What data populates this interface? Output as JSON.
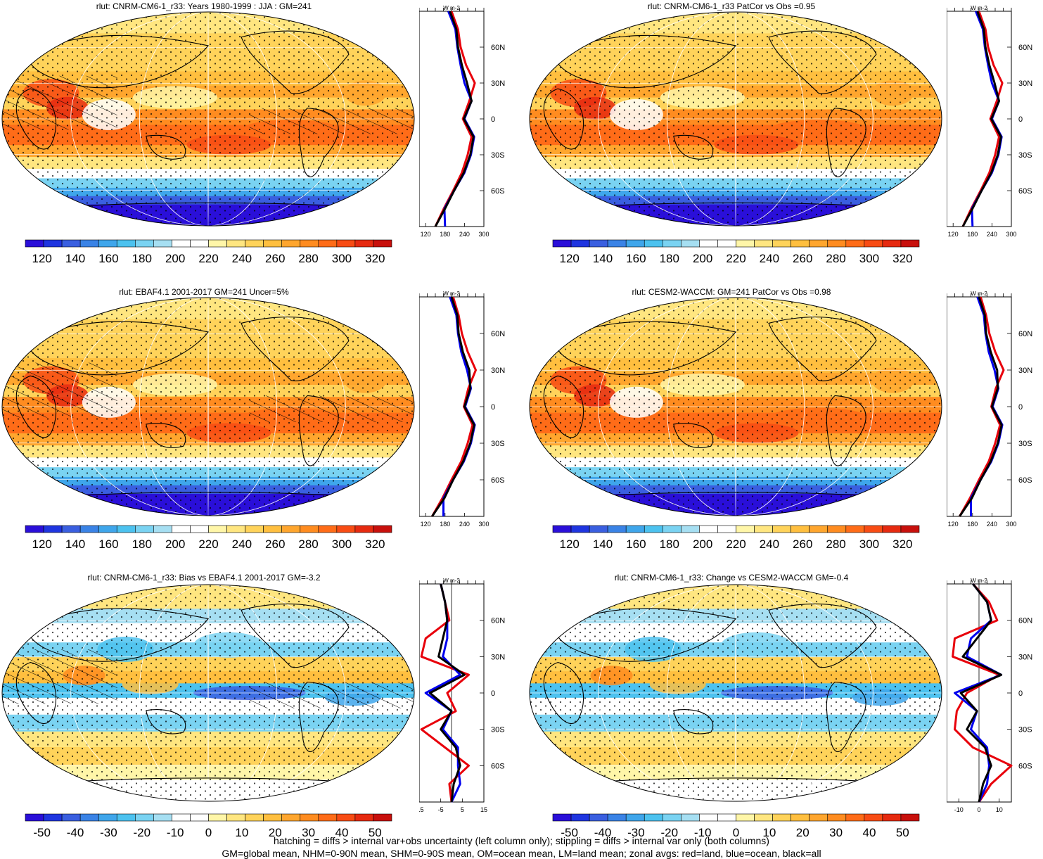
{
  "panels": [
    {
      "title": "rlut: CNRM-CM6-1_r33: Years 1980-1999 : JJA : GM=241",
      "colorbar": "abs",
      "zonal": "abs",
      "hatch": true
    },
    {
      "title": "rlut: CNRM-CM6-1_r33 PatCor vs Obs =0.95",
      "colorbar": "abs",
      "zonal": "abs",
      "hatch": false
    },
    {
      "title": "rlut: EBAF4.1 2001-2017 GM=241 Uncer=5%",
      "colorbar": "abs",
      "zonal": "abs",
      "hatch": true
    },
    {
      "title": "rlut: CESM2-WACCM: GM=241 PatCor vs Obs =0.98",
      "colorbar": "abs",
      "zonal": "abs",
      "hatch": false
    },
    {
      "title": "rlut: CNRM-CM6-1_r33: Bias vs EBAF4.1 2001-2017 GM=-3.2",
      "colorbar": "diff",
      "zonal": "diffL",
      "hatch": true
    },
    {
      "title": "rlut: CNRM-CM6-1_r33: Change vs CESM2-WACCM GM=-0.4",
      "colorbar": "diff",
      "zonal": "diffR",
      "hatch": false
    }
  ],
  "colorbars": {
    "abs": {
      "labels": [
        "120",
        "140",
        "160",
        "180",
        "200",
        "220",
        "240",
        "260",
        "280",
        "300",
        "320"
      ]
    },
    "diff": {
      "labels": [
        "-50",
        "-40",
        "-30",
        "-20",
        "-10",
        "0",
        "10",
        "20",
        "30",
        "40",
        "50"
      ]
    }
  },
  "palette": [
    "#2a0fd9",
    "#1f35e0",
    "#3a5fe0",
    "#3a83e6",
    "#3fa6eb",
    "#4cc2ef",
    "#7ad3f2",
    "#a6dff2",
    "#ffffff",
    "#ffffff",
    "#fff6a8",
    "#ffe680",
    "#ffd35a",
    "#ffbf3f",
    "#ffa62e",
    "#ff8c20",
    "#ff6c18",
    "#f84c14",
    "#e62a10",
    "#c8100c"
  ],
  "zonal_axis": {
    "unit": "W m-2",
    "lat_labels": [
      "60N",
      "30N",
      "0",
      "30S",
      "60S"
    ],
    "abs_ticks": [
      "120",
      "180",
      "240",
      "300"
    ],
    "diffL_ticks": [
      "-15",
      "-5",
      "5",
      "15"
    ],
    "diffR_ticks": [
      "-10",
      "0",
      "10"
    ]
  },
  "footnote": {
    "line1": "hatching = diffs > internal var+obs uncertainty (left column only); stippling = diffs > internal var only (both columns)",
    "line2": "GM=global mean, NHM=0-90N mean, SHM=0-90S mean, OM=ocean mean, LM=land mean; zonal avgs: red=land, blue=ocean, black=all"
  },
  "chart_data": [
    {
      "type": "heatmap",
      "title": "rlut: CNRM-CM6-1_r33: Years 1980-1999 : JJA : GM=241",
      "colorbar_range": [
        120,
        320
      ],
      "zonal_mean_profiles": {
        "lat": [
          90,
          75,
          60,
          45,
          30,
          15,
          0,
          -15,
          -30,
          -45,
          -60,
          -75,
          -90
        ],
        "all": [
          195,
          215,
          220,
          232,
          248,
          262,
          238,
          268,
          258,
          238,
          208,
          180,
          150
        ],
        "land": [
          200,
          220,
          228,
          245,
          272,
          255,
          235,
          262,
          250,
          232,
          205,
          176,
          150
        ],
        "ocean": [
          190,
          212,
          218,
          228,
          240,
          262,
          240,
          270,
          260,
          240,
          208,
          178,
          180
        ]
      }
    },
    {
      "type": "heatmap",
      "title": "rlut: CNRM-CM6-1_r33 PatCor vs Obs =0.95",
      "colorbar_range": [
        120,
        320
      ],
      "zonal_mean_profiles": {
        "lat": [
          90,
          75,
          60,
          45,
          30,
          15,
          0,
          -15,
          -30,
          -45,
          -60,
          -75,
          -90
        ],
        "all": [
          195,
          215,
          220,
          232,
          248,
          262,
          238,
          268,
          258,
          238,
          208,
          180,
          150
        ],
        "land": [
          200,
          220,
          228,
          245,
          272,
          255,
          235,
          262,
          250,
          232,
          205,
          176,
          150
        ],
        "ocean": [
          190,
          212,
          218,
          228,
          240,
          262,
          240,
          270,
          260,
          240,
          208,
          178,
          180
        ]
      }
    },
    {
      "type": "heatmap",
      "title": "rlut: EBAF4.1 2001-2017 GM=241 Uncer=5%",
      "colorbar_range": [
        120,
        320
      ],
      "zonal_mean_profiles": {
        "lat": [
          90,
          75,
          60,
          45,
          30,
          15,
          0,
          -15,
          -30,
          -45,
          -60,
          -75,
          -90
        ],
        "all": [
          200,
          218,
          222,
          235,
          255,
          258,
          240,
          270,
          258,
          236,
          205,
          178,
          140
        ],
        "land": [
          205,
          222,
          232,
          250,
          275,
          252,
          238,
          265,
          250,
          230,
          200,
          172,
          140
        ],
        "ocean": [
          195,
          215,
          220,
          230,
          248,
          260,
          242,
          272,
          260,
          238,
          205,
          175,
          175
        ]
      }
    },
    {
      "type": "heatmap",
      "title": "rlut: CESM2-WACCM: GM=241 PatCor vs Obs =0.98",
      "colorbar_range": [
        120,
        320
      ],
      "zonal_mean_profiles": {
        "lat": [
          90,
          75,
          60,
          45,
          30,
          15,
          0,
          -15,
          -30,
          -45,
          -60,
          -75,
          -90
        ],
        "all": [
          200,
          218,
          222,
          236,
          256,
          258,
          240,
          270,
          258,
          236,
          205,
          178,
          140
        ],
        "land": [
          205,
          222,
          232,
          250,
          276,
          252,
          238,
          265,
          250,
          230,
          200,
          172,
          140
        ],
        "ocean": [
          195,
          215,
          220,
          230,
          248,
          260,
          242,
          272,
          260,
          238,
          205,
          175,
          175
        ]
      }
    },
    {
      "type": "heatmap",
      "title": "rlut: CNRM-CM6-1_r33: Bias vs EBAF4.1 2001-2017 GM=-3.2",
      "colorbar_range": [
        -55,
        55
      ],
      "zonal_mean_profiles": {
        "lat": [
          90,
          75,
          60,
          45,
          30,
          15,
          0,
          -15,
          -30,
          -45,
          -60,
          -75,
          -90
        ],
        "all": [
          -5,
          -3,
          -2,
          -4,
          -6,
          6,
          -10,
          0,
          -5,
          2,
          4,
          1,
          0
        ],
        "land": [
          -5,
          -3,
          -1,
          -12,
          -14,
          8,
          -2,
          2,
          -14,
          -3,
          8,
          -1,
          0
        ],
        "ocean": [
          -5,
          -3,
          -2,
          -2,
          -4,
          4,
          -12,
          0,
          -4,
          3,
          3,
          4,
          0
        ]
      }
    },
    {
      "type": "heatmap",
      "title": "rlut: CNRM-CM6-1_r33: Change vs CESM2-WACCM GM=-0.4",
      "colorbar_range": [
        -55,
        55
      ],
      "zonal_mean_profiles": {
        "lat": [
          90,
          75,
          60,
          45,
          30,
          15,
          0,
          -15,
          -30,
          -45,
          -60,
          -75,
          -90
        ],
        "all": [
          -3,
          4,
          6,
          -1,
          -8,
          11,
          -9,
          -1,
          -6,
          3,
          6,
          2,
          0
        ],
        "land": [
          -3,
          5,
          9,
          -12,
          -13,
          10,
          -6,
          -11,
          -12,
          -3,
          16,
          6,
          0
        ],
        "ocean": [
          -3,
          4,
          6,
          -4,
          -6,
          11,
          -12,
          -1,
          -4,
          4,
          5,
          4,
          0
        ]
      }
    }
  ]
}
